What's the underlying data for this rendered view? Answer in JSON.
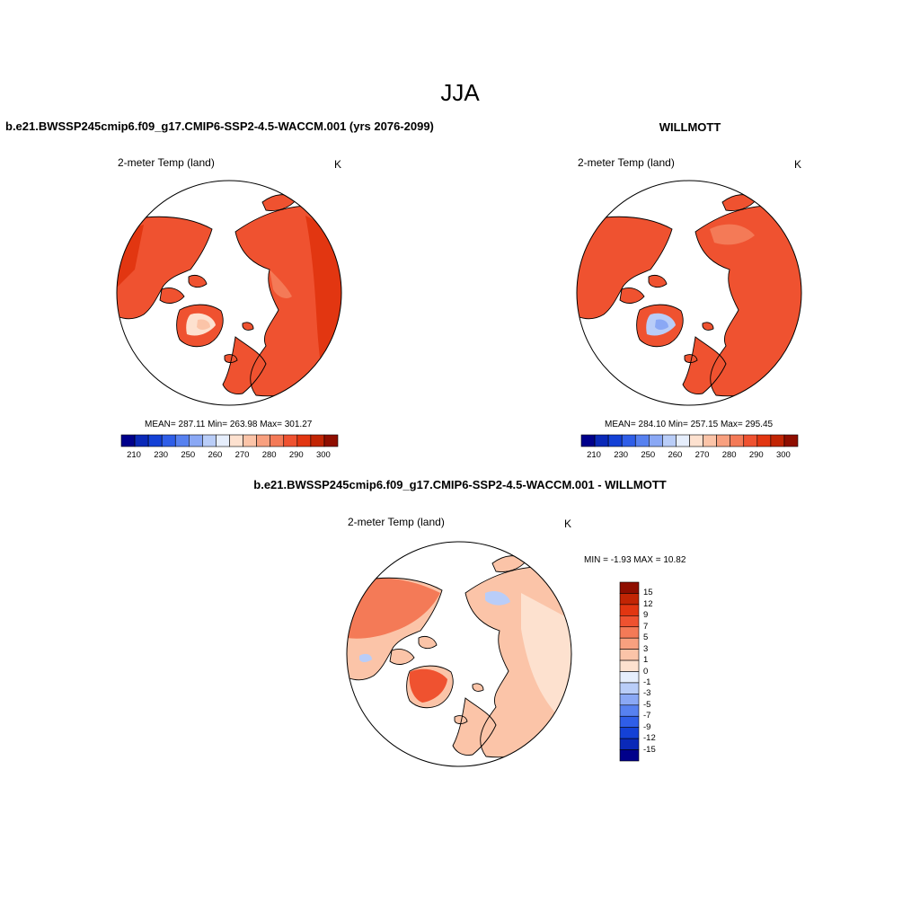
{
  "title": "JJA",
  "panels": {
    "model": {
      "title": "b.e21.BWSSP245cmip6.f09_g17.CMIP6-SSP2-4.5-WACCM.001 (yrs 2076-2099)",
      "variable": "2-meter Temp (land)",
      "units": "K",
      "stats": "MEAN= 287.11  Min= 263.98  Max= 301.27"
    },
    "obs": {
      "title": "WILLMOTT",
      "variable": "2-meter Temp (land)",
      "units": "K",
      "stats": "MEAN= 284.10  Min= 257.15  Max= 295.45"
    },
    "diff": {
      "title": "b.e21.BWSSP245cmip6.f09_g17.CMIP6-SSP2-4.5-WACCM.001 - WILLMOTT",
      "variable": "2-meter Temp (land)",
      "units": "K",
      "stats": "MIN =  -1.93 MAX =  10.82"
    }
  },
  "abs_colorbar": {
    "tick_labels": [
      "210",
      "230",
      "250",
      "260",
      "270",
      "280",
      "290",
      "300"
    ],
    "colors": [
      "#00008b",
      "#0a29b8",
      "#1441d6",
      "#2f5ee8",
      "#5781f0",
      "#8aa8f5",
      "#b9cdf8",
      "#e6eefc",
      "#fde1cf",
      "#fbc4a8",
      "#f8a07f",
      "#f47a57",
      "#ef5230",
      "#e23611",
      "#c22504",
      "#8f0e00"
    ]
  },
  "diff_colorbar": {
    "tick_labels": [
      "15",
      "12",
      "9",
      "7",
      "5",
      "3",
      "1",
      "0",
      "-1",
      "-3",
      "-5",
      "-7",
      "-9",
      "-12",
      "-15"
    ],
    "colors": [
      "#8f0e00",
      "#c22504",
      "#e23611",
      "#ef5230",
      "#f47a57",
      "#f8a07f",
      "#fbc4a8",
      "#fde1cf",
      "#e6eefc",
      "#b9cdf8",
      "#8aa8f5",
      "#5781f0",
      "#2f5ee8",
      "#1441d6",
      "#0a29b8",
      "#00008b"
    ]
  },
  "chart_data": [
    {
      "type": "heatmap",
      "title": "b.e21.BWSSP245cmip6.f09_g17.CMIP6-SSP2-4.5-WACCM.001 (yrs 2076-2099)",
      "variable": "2-meter Temp (land)",
      "units": "K",
      "projection": "polar stereographic (north)",
      "mean": 287.11,
      "min": 263.98,
      "max": 301.27,
      "colorbar_levels": [
        210,
        230,
        250,
        260,
        270,
        280,
        290,
        300
      ]
    },
    {
      "type": "heatmap",
      "title": "WILLMOTT",
      "variable": "2-meter Temp (land)",
      "units": "K",
      "projection": "polar stereographic (north)",
      "mean": 284.1,
      "min": 257.15,
      "max": 295.45,
      "colorbar_levels": [
        210,
        230,
        250,
        260,
        270,
        280,
        290,
        300
      ]
    },
    {
      "type": "heatmap",
      "title": "b.e21.BWSSP245cmip6.f09_g17.CMIP6-SSP2-4.5-WACCM.001 - WILLMOTT",
      "variable": "2-meter Temp (land)",
      "units": "K",
      "projection": "polar stereographic (north)",
      "min": -1.93,
      "max": 10.82,
      "colorbar_levels": [
        -15,
        -12,
        -9,
        -7,
        -5,
        -3,
        -1,
        0,
        1,
        3,
        5,
        7,
        9,
        12,
        15
      ]
    }
  ]
}
